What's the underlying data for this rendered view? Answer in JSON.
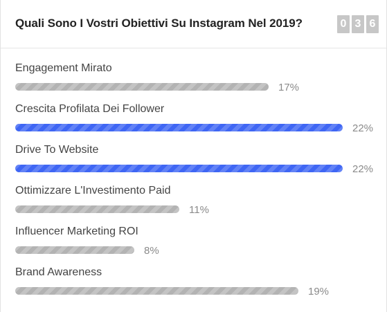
{
  "poll": {
    "title": "Quali Sono I Vostri Obiettivi Su Instagram Nel 2019?",
    "counter_digits": [
      "0",
      "3",
      "6"
    ],
    "colors": {
      "default_bar": "#b3b3b3",
      "leading_bar": "#3f66f4"
    },
    "options": [
      {
        "label": "Engagement Mirato",
        "percent_label": "17%",
        "percent": 17,
        "leading": false
      },
      {
        "label": "Crescita Profilata Dei Follower",
        "percent_label": "22%",
        "percent": 22,
        "leading": true
      },
      {
        "label": "Drive To Website",
        "percent_label": "22%",
        "percent": 22,
        "leading": true
      },
      {
        "label": "Ottimizzare L'Investimento Paid",
        "percent_label": "11%",
        "percent": 11,
        "leading": false
      },
      {
        "label": "Influencer Marketing ROI",
        "percent_label": "8%",
        "percent": 8,
        "leading": false
      },
      {
        "label": "Brand Awareness",
        "percent_label": "19%",
        "percent": 19,
        "leading": false
      }
    ]
  }
}
